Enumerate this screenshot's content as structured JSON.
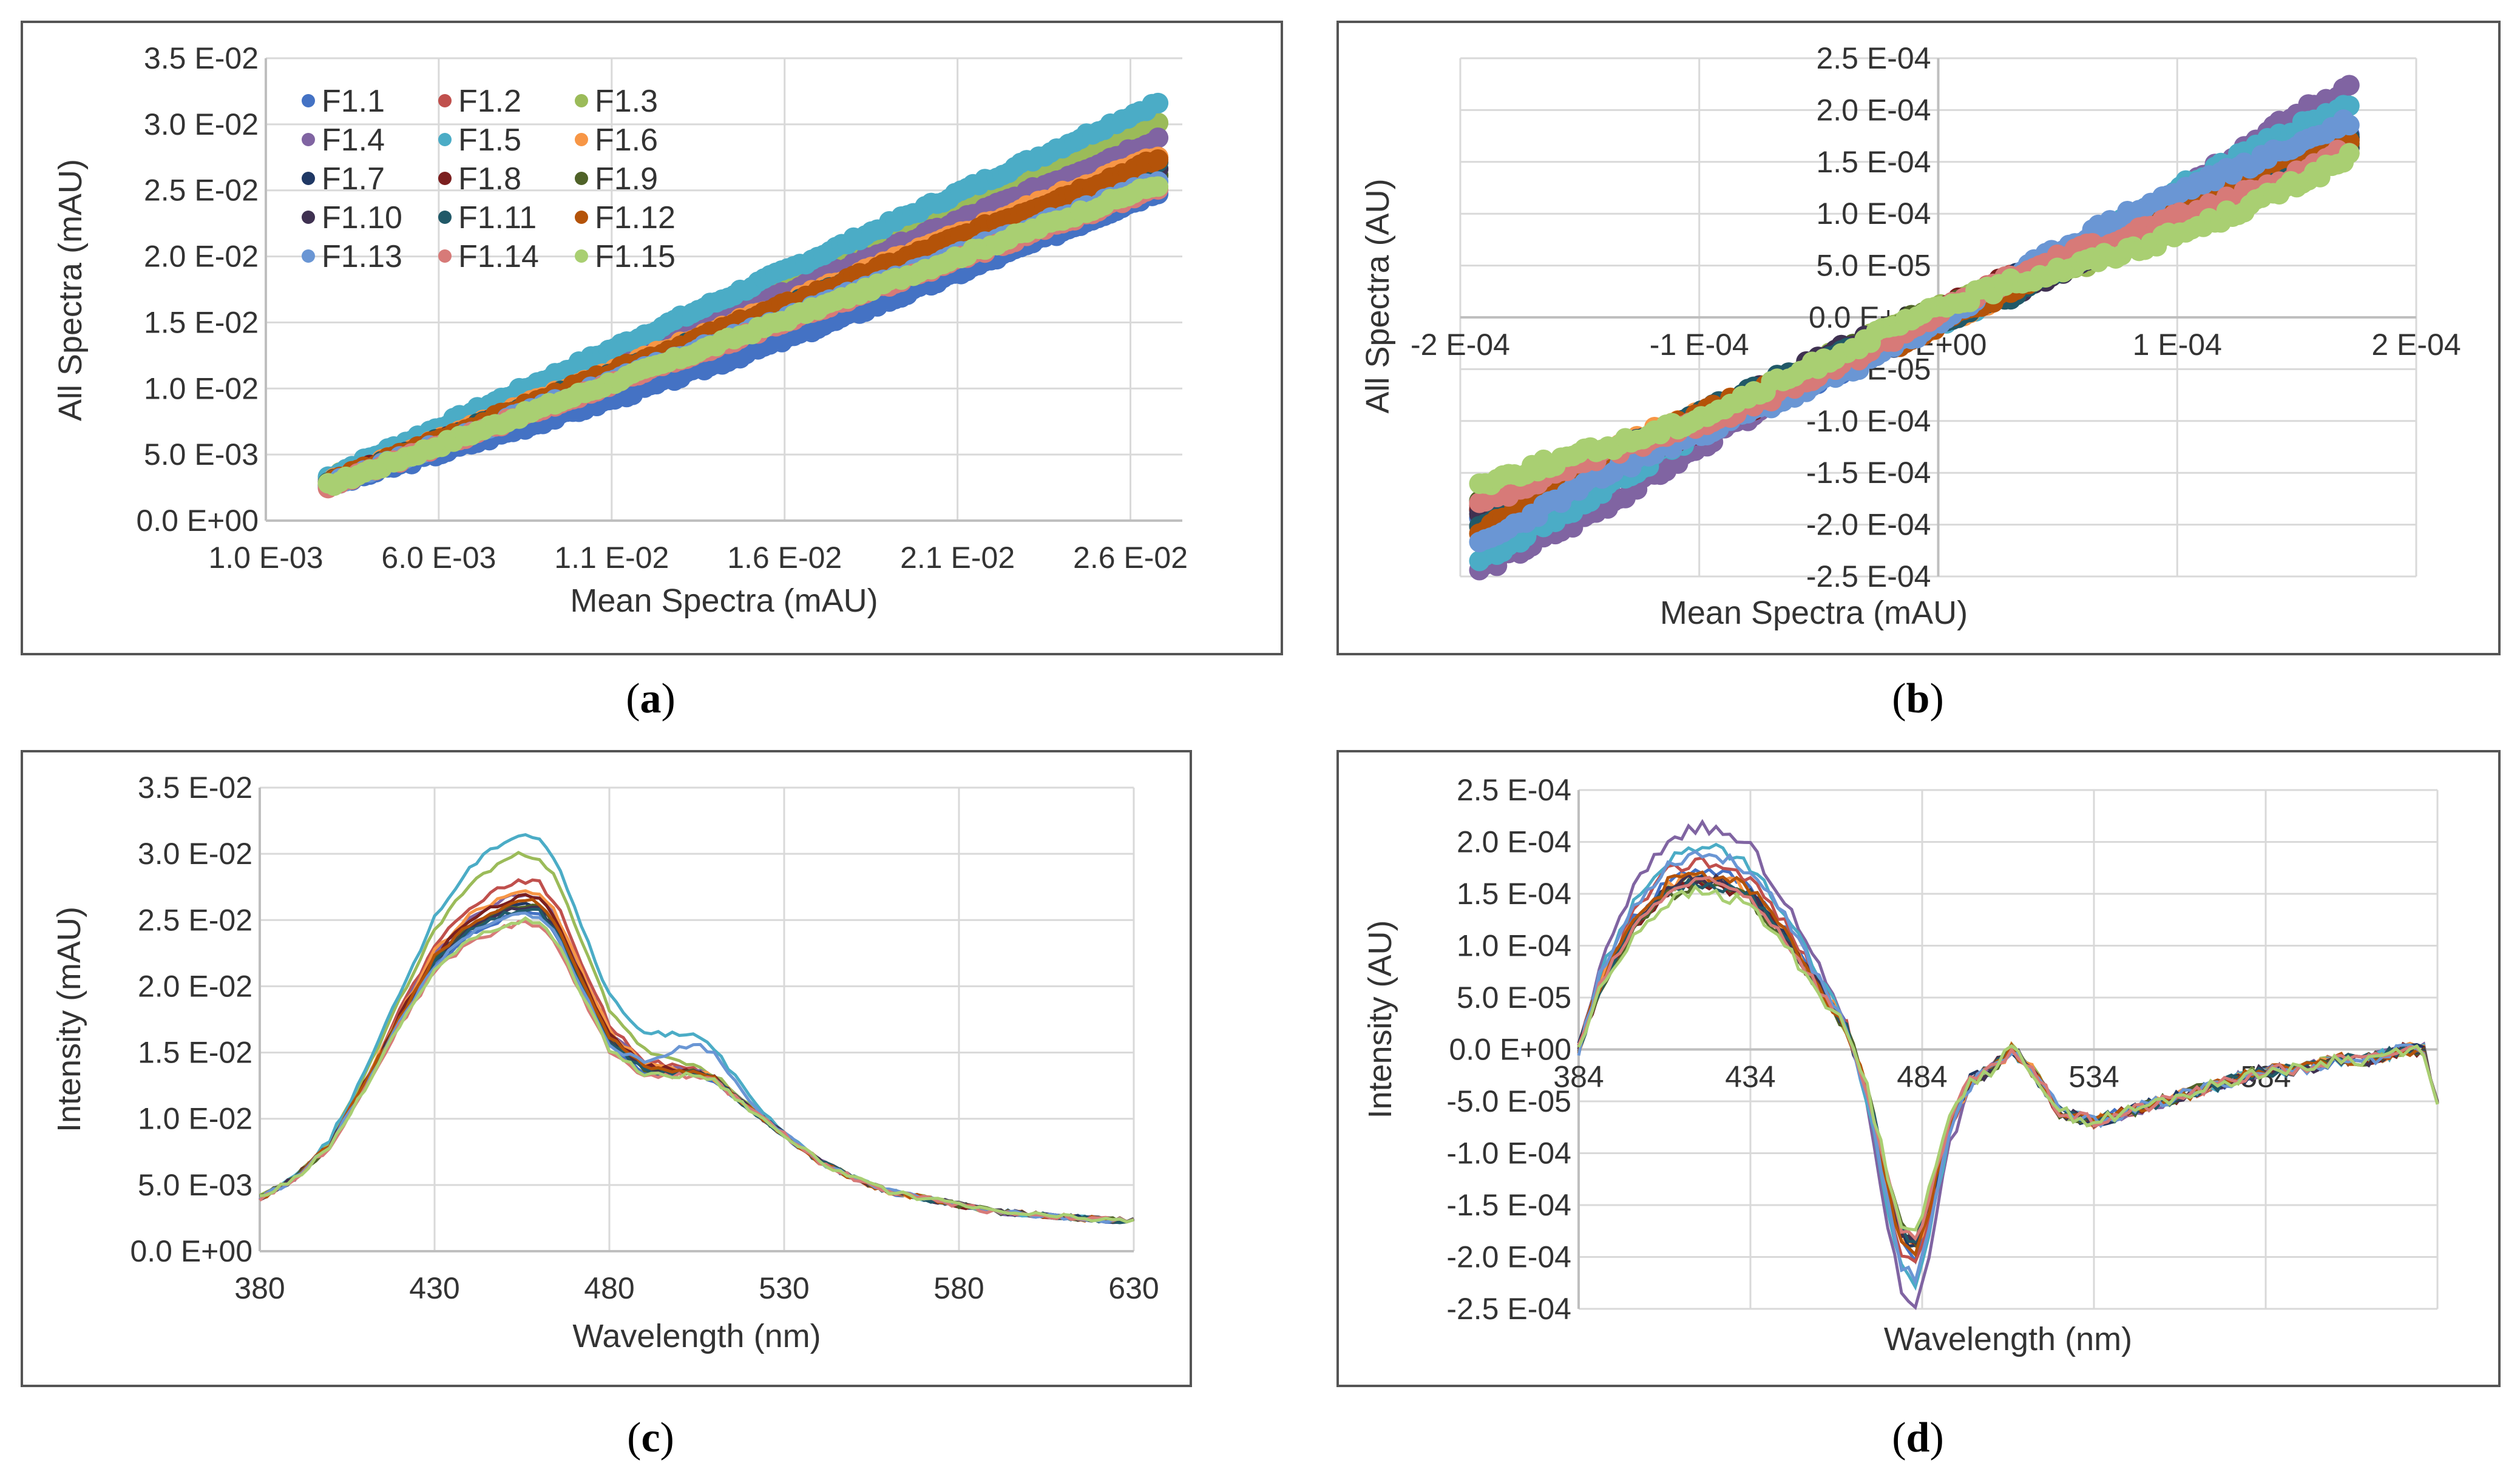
{
  "figure": {
    "captions": [
      "a",
      "b",
      "c",
      "d"
    ]
  },
  "series_names": [
    "F1.1",
    "F1.2",
    "F1.3",
    "F1.4",
    "F1.5",
    "F1.6",
    "F1.7",
    "F1.8",
    "F1.9",
    "F1.10",
    "F1.11",
    "F1.12",
    "F1.13",
    "F1.14",
    "F1.15"
  ],
  "series_colors": [
    "#4472C4",
    "#C0504D",
    "#9BBB59",
    "#8064A2",
    "#4BACC6",
    "#F79646",
    "#1F3864",
    "#7B1F1F",
    "#4F6228",
    "#3F3151",
    "#215968",
    "#B45309",
    "#6A96D4",
    "#D77A78",
    "#A9CF72"
  ],
  "chart_data": [
    {
      "id": "a",
      "type": "scatter",
      "xlabel": "Mean Spectra (mAU)",
      "ylabel": "All Spectra (mAU)",
      "xlim": [
        0.001,
        0.0275
      ],
      "ylim": [
        0,
        0.035
      ],
      "xticks": [
        0.001,
        0.006,
        0.011,
        0.016,
        0.021,
        0.026
      ],
      "xtick_labels": [
        "1.0 E-03",
        "6.0 E-03",
        "1.1 E-02",
        "1.6 E-02",
        "2.1 E-02",
        "2.6 E-02"
      ],
      "yticks": [
        0,
        0.005,
        0.01,
        0.015,
        0.02,
        0.025,
        0.03,
        0.035
      ],
      "ytick_labels": [
        "0.0 E+00",
        "5.0 E-03",
        "1.0 E-02",
        "1.5 E-02",
        "2.0 E-02",
        "2.5 E-02",
        "3.0 E-02",
        "3.5 E-02"
      ],
      "legend": "top-left",
      "x_range": [
        0.0028,
        0.0268
      ],
      "series_slopes": [
        0.93,
        1.02,
        1.12,
        1.08,
        1.18,
        1.03,
        0.98,
        1.0,
        0.97,
        0.99,
        1.01,
        1.02,
        0.96,
        0.94,
        0.95
      ]
    },
    {
      "id": "b",
      "type": "scatter",
      "xlabel": "Mean Spectra (mAU)",
      "ylabel": "All Spectra (AU)",
      "xlim": [
        -0.0002,
        0.0002
      ],
      "ylim": [
        -0.00025,
        0.00025
      ],
      "xticks": [
        -0.0002,
        -0.0001,
        0,
        0.0001,
        0.0002
      ],
      "xtick_labels": [
        "-2 E-04",
        "-1 E-04",
        "0 E+00",
        "1 E-04",
        "2 E-04"
      ],
      "yticks": [
        -0.00025,
        -0.0002,
        -0.00015,
        -0.0001,
        -5e-05,
        0,
        5e-05,
        0.0001,
        0.00015,
        0.0002,
        0.00025
      ],
      "ytick_labels": [
        "-2.5 E-04",
        "-2.0 E-04",
        "-1.5 E-04",
        "-1.0 E-04",
        "-5.0 E-05",
        "0.0 E+00",
        "5.0 E-05",
        "1.0 E-04",
        "1.5 E-04",
        "2.0 E-04",
        "2.5 E-04"
      ],
      "x_range": [
        -0.000192,
        0.000172
      ],
      "series_slopes": [
        1.05,
        1.0,
        0.95,
        1.25,
        1.17,
        1.0,
        1.0,
        1.02,
        0.96,
        0.98,
        1.0,
        1.03,
        1.15,
        0.98,
        0.88
      ]
    },
    {
      "id": "c",
      "type": "line",
      "xlabel": "Wavelength (nm)",
      "ylabel": "Intensity (mAU)",
      "xlim": [
        380,
        630
      ],
      "ylim": [
        0,
        0.035
      ],
      "xticks": [
        380,
        430,
        480,
        530,
        580,
        630
      ],
      "xtick_labels": [
        "380",
        "430",
        "480",
        "530",
        "580",
        "630"
      ],
      "yticks": [
        0,
        0.005,
        0.01,
        0.015,
        0.02,
        0.025,
        0.03,
        0.035
      ],
      "ytick_labels": [
        "0.0 E+00",
        "5.0 E-03",
        "1.0 E-02",
        "1.5 E-02",
        "2.0 E-02",
        "2.5 E-02",
        "3.0 E-02",
        "3.5 E-02"
      ],
      "x": [
        380,
        390,
        400,
        410,
        420,
        430,
        440,
        450,
        455,
        460,
        465,
        470,
        480,
        490,
        500,
        505,
        510,
        520,
        530,
        540,
        550,
        560,
        570,
        580,
        590,
        600,
        610,
        620,
        630
      ],
      "mean": [
        0.004,
        0.0055,
        0.008,
        0.0125,
        0.0175,
        0.022,
        0.0245,
        0.0258,
        0.0262,
        0.026,
        0.0245,
        0.0215,
        0.016,
        0.0138,
        0.0135,
        0.0135,
        0.013,
        0.0108,
        0.0088,
        0.0068,
        0.0055,
        0.0045,
        0.004,
        0.0035,
        0.003,
        0.0028,
        0.0026,
        0.0024,
        0.0023
      ],
      "peak_values": [
        0.0255,
        0.028,
        0.03,
        0.027,
        0.0315,
        0.0272,
        0.0262,
        0.0268,
        0.0262,
        0.026,
        0.0258,
        0.0265,
        0.0255,
        0.0248,
        0.025
      ]
    },
    {
      "id": "d",
      "type": "line",
      "xlabel": "Wavelength (nm)",
      "ylabel": "Intensity (AU)",
      "xlim": [
        384,
        634
      ],
      "ylim": [
        -0.00025,
        0.00025
      ],
      "xticks": [
        384,
        434,
        484,
        534,
        584
      ],
      "xtick_labels": [
        "384",
        "434",
        "484",
        "534",
        "584"
      ],
      "yticks": [
        -0.00025,
        -0.0002,
        -0.00015,
        -0.0001,
        -5e-05,
        0,
        5e-05,
        0.0001,
        0.00015,
        0.0002,
        0.00025
      ],
      "ytick_labels": [
        "-2.5 E-04",
        "-2.0 E-04",
        "-1.5 E-04",
        "-1.0 E-04",
        "-5.0 E-05",
        "0.0 E+00",
        "5.0 E-05",
        "1.0 E-04",
        "1.5 E-04",
        "2.0 E-04",
        "2.5 E-04"
      ],
      "x": [
        384,
        390,
        400,
        410,
        418,
        425,
        434,
        444,
        454,
        462,
        468,
        474,
        478,
        482,
        486,
        492,
        498,
        504,
        510,
        516,
        524,
        534,
        544,
        554,
        564,
        574,
        584,
        594,
        604,
        614,
        624,
        630,
        634
      ],
      "mean": [
        0.0,
        6e-05,
        0.00012,
        0.000155,
        0.000165,
        0.000162,
        0.00015,
        0.00011,
        6e-05,
        2e-05,
        -4e-05,
        -0.00013,
        -0.00018,
        -0.00019,
        -0.00015,
        -7e-05,
        -3e-05,
        -2e-05,
        0.0,
        -2e-05,
        -6e-05,
        -7e-05,
        -6e-05,
        -5e-05,
        -4e-05,
        -3e-05,
        -2e-05,
        -2e-05,
        -1e-05,
        -1e-05,
        0.0,
        0.0,
        -5e-05
      ],
      "amp_factors": [
        1.05,
        1.1,
        1.0,
        1.3,
        1.18,
        1.02,
        1.0,
        0.98,
        0.96,
        1.0,
        0.98,
        1.03,
        1.15,
        0.98,
        0.92
      ]
    }
  ]
}
